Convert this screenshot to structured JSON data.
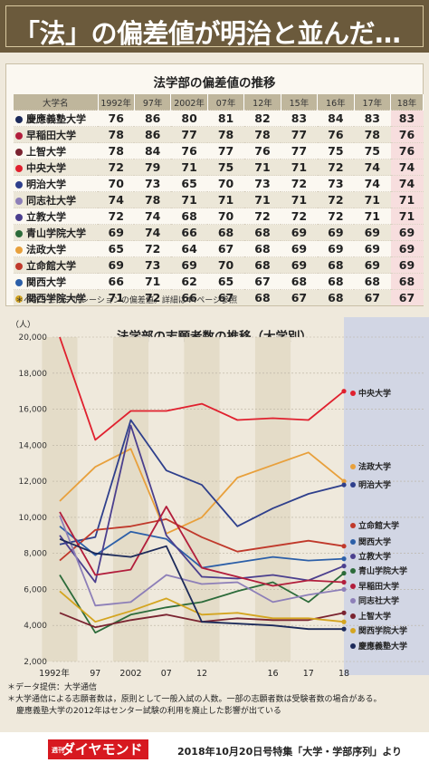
{
  "headline": "「法」の偏差値が明治と並んだ…",
  "table": {
    "title": "法学部の偏差値の推移",
    "col_header": "大学名",
    "years": [
      "1992年",
      "97年",
      "2002年",
      "07年",
      "12年",
      "15年",
      "16年",
      "17年",
      "18年"
    ],
    "rows": [
      {
        "name": "慶應義塾大学",
        "color": "#1c2a5a",
        "values": [
          "76",
          "86",
          "80",
          "81",
          "82",
          "83",
          "84",
          "83",
          "83"
        ]
      },
      {
        "name": "早稲田大学",
        "color": "#b21e3c",
        "values": [
          "78",
          "86",
          "77",
          "78",
          "78",
          "77",
          "76",
          "78",
          "76"
        ]
      },
      {
        "name": "上智大学",
        "color": "#7a2330",
        "values": [
          "78",
          "84",
          "76",
          "77",
          "76",
          "77",
          "75",
          "75",
          "76"
        ]
      },
      {
        "name": "中央大学",
        "color": "#e0202e",
        "values": [
          "72",
          "79",
          "71",
          "75",
          "71",
          "71",
          "72",
          "74",
          "74"
        ]
      },
      {
        "name": "明治大学",
        "color": "#2e3f8c",
        "values": [
          "70",
          "73",
          "65",
          "70",
          "73",
          "72",
          "73",
          "74",
          "74"
        ]
      },
      {
        "name": "同志社大学",
        "color": "#8d7fb8",
        "values": [
          "74",
          "78",
          "71",
          "71",
          "71",
          "71",
          "72",
          "71",
          "71"
        ]
      },
      {
        "name": "立教大学",
        "color": "#4b3f8e",
        "values": [
          "72",
          "74",
          "68",
          "70",
          "72",
          "72",
          "72",
          "71",
          "71"
        ]
      },
      {
        "name": "青山学院大学",
        "color": "#2c6b3a",
        "values": [
          "69",
          "74",
          "66",
          "68",
          "68",
          "69",
          "69",
          "69",
          "69"
        ]
      },
      {
        "name": "法政大学",
        "color": "#e8a03c",
        "values": [
          "65",
          "72",
          "64",
          "67",
          "68",
          "69",
          "69",
          "69",
          "69"
        ]
      },
      {
        "name": "立命館大学",
        "color": "#c0392b",
        "values": [
          "69",
          "73",
          "69",
          "70",
          "68",
          "69",
          "68",
          "69",
          "69"
        ]
      },
      {
        "name": "関西大学",
        "color": "#2c5fa8",
        "values": [
          "66",
          "71",
          "62",
          "65",
          "67",
          "68",
          "68",
          "68",
          "68"
        ]
      },
      {
        "name": "関西学院大学",
        "color": "#d4a520",
        "values": [
          "71",
          "72",
          "66",
          "67",
          "68",
          "67",
          "68",
          "67",
          "67"
        ]
      }
    ],
    "note": "＊ベネッセコーポレーションの偏差値。詳細は44ページ参照"
  },
  "chart_data": {
    "type": "line",
    "title": "法学部の志願者数の推移（大学別）",
    "ylabel": "（人）",
    "ylim": [
      2000,
      20000
    ],
    "yticks": [
      "20,000",
      "18,000",
      "16,000",
      "14,000",
      "12,000",
      "10,000",
      "8,000",
      "6,000",
      "4,000",
      "2,000"
    ],
    "x": [
      1992,
      1997,
      2002,
      2007,
      2012,
      2015,
      2016,
      2017,
      2018
    ],
    "xtick_labels": [
      "1992年",
      "97",
      "2002",
      "07",
      "12",
      "",
      "16",
      "17",
      "18"
    ],
    "series": [
      {
        "name": "中央大学",
        "color": "#e0202e",
        "values": [
          20000,
          14300,
          15900,
          15900,
          16300,
          15400,
          15500,
          15400,
          17000
        ]
      },
      {
        "name": "法政大学",
        "color": "#e8a03c",
        "values": [
          10900,
          12800,
          13800,
          9100,
          10000,
          12200,
          12900,
          13600,
          12000
        ]
      },
      {
        "name": "明治大学",
        "color": "#2e3f8c",
        "values": [
          8500,
          8900,
          15400,
          12600,
          11800,
          9500,
          10500,
          11300,
          11800
        ]
      },
      {
        "name": "立命館大学",
        "color": "#c0392b",
        "values": [
          7600,
          9300,
          9500,
          9900,
          8900,
          8100,
          8400,
          8700,
          8400
        ]
      },
      {
        "name": "関西大学",
        "color": "#2c5fa8",
        "values": [
          9500,
          7900,
          9200,
          8800,
          7200,
          7500,
          7800,
          7600,
          7700
        ]
      },
      {
        "name": "立教大学",
        "color": "#4b3f8e",
        "values": [
          9000,
          6400,
          15100,
          9000,
          6700,
          6600,
          6800,
          6500,
          7300
        ]
      },
      {
        "name": "青山学院大学",
        "color": "#2c6b3a",
        "values": [
          6800,
          3600,
          4600,
          5000,
          5300,
          5900,
          6400,
          5300,
          6900
        ]
      },
      {
        "name": "早稲田大学",
        "color": "#b21e3c",
        "values": [
          10300,
          6800,
          7100,
          10600,
          7200,
          6700,
          6200,
          6500,
          6400
        ]
      },
      {
        "name": "同志社大学",
        "color": "#8d7fb8",
        "values": [
          10100,
          5100,
          5300,
          6800,
          6300,
          6400,
          5300,
          5700,
          6000
        ]
      },
      {
        "name": "上智大学",
        "color": "#7a2330",
        "values": [
          4700,
          3900,
          4300,
          4600,
          4200,
          4400,
          4300,
          4300,
          4700
        ]
      },
      {
        "name": "関西学院大学",
        "color": "#d4a520",
        "values": [
          5900,
          4200,
          4800,
          5500,
          4600,
          4700,
          4400,
          4400,
          4200
        ]
      },
      {
        "name": "慶應義塾大学",
        "color": "#1c2a5a",
        "values": [
          8800,
          8000,
          7800,
          8400,
          4200,
          4100,
          4000,
          3800,
          3800
        ]
      }
    ]
  },
  "footnotes": [
    "＊データ提供：大学通信",
    "＊大学通信による志願者数は，原則として一般入試の人数。一部の志願者数は受験者数の場合がある。",
    "慶應義塾大学の2012年はセンター試験の利用を廃止した影響が出ている"
  ],
  "footer": {
    "logo_small": "週刊",
    "logo": "ダイヤモンド",
    "credit": "2018年10月20日号特集「大学・学部序列」より"
  }
}
